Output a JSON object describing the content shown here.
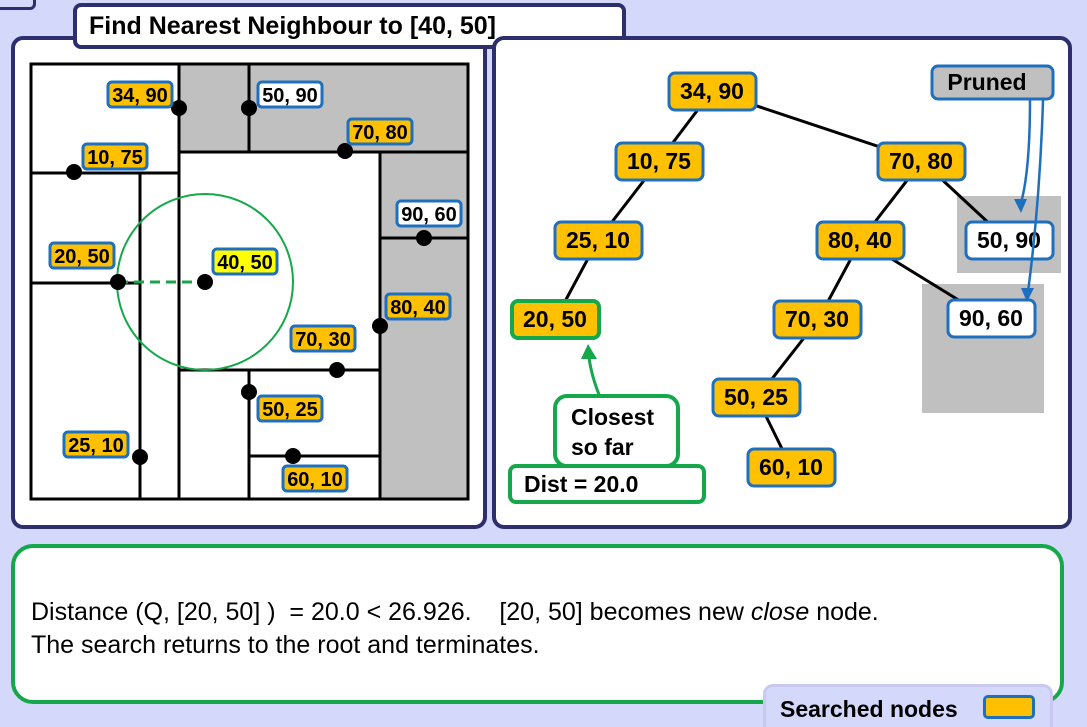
{
  "title": "Find Nearest Neighbour to [40, 50]",
  "query_point": "40, 50",
  "space_labels": {
    "p34_90": "34, 90",
    "p50_90": "50, 90",
    "p70_80": "70, 80",
    "p10_75": "10, 75",
    "p90_60": "90, 60",
    "p20_50": "20, 50",
    "p80_40": "80, 40",
    "p70_30": "70, 30",
    "p50_25": "50, 25",
    "p25_10": "25, 10",
    "p60_10": "60, 10"
  },
  "tree_nodes": {
    "n34_90": "34, 90",
    "n10_75": "10, 75",
    "n70_80": "70, 80",
    "n25_10": "25, 10",
    "n80_40": "80, 40",
    "n50_90": "50, 90",
    "n20_50": "20, 50",
    "n70_30": "70, 30",
    "n90_60": "90, 60",
    "n50_25": "50, 25",
    "n60_10": "60, 10"
  },
  "pruned_label": "Pruned",
  "closest_label_line1": "Closest",
  "closest_label_line2": "so far",
  "dist_label": "Dist = 20.0",
  "explanation": {
    "line1_prefix": "Distance (Q, [20, 50] )  = 20.0 < 26.926.    [20, 50] becomes new ",
    "line1_italic": "close",
    "line1_suffix": " node.",
    "line2": "The search returns to the root and terminates."
  },
  "legend": {
    "label": "Searched nodes"
  },
  "colors": {
    "searched_fill": "#ffc000",
    "node_border": "#1f6fbf",
    "pruned_fill": "#c0c0c0",
    "highlight_green": "#15a84a",
    "panel_border": "#2c2e6e",
    "query_fill": "#ffff00",
    "background": "#d4d9fb"
  }
}
